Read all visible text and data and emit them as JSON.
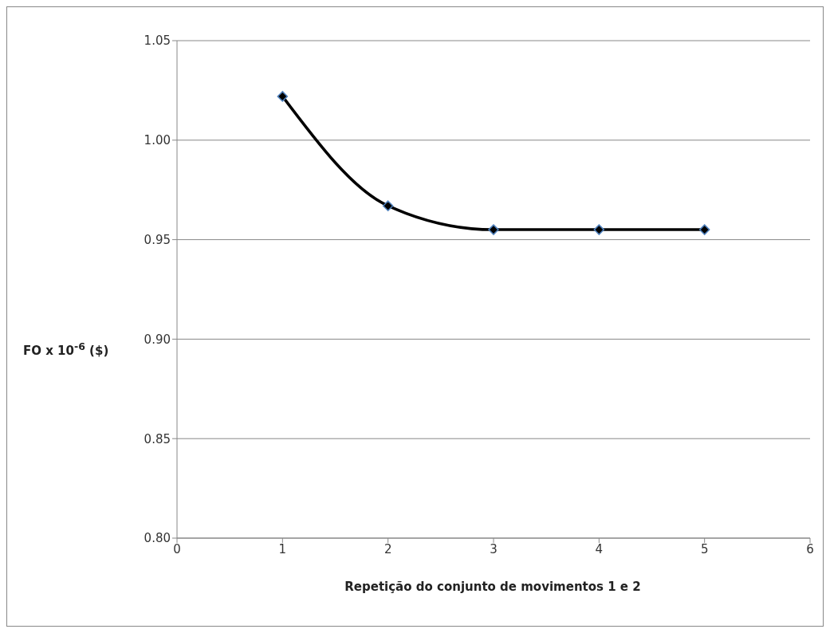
{
  "chart_data": {
    "type": "line",
    "xlabel": "Repetição do conjunto de movimentos 1 e 2",
    "ylabel": "FO x 10$^{-6}$ ($)",
    "x": [
      1,
      2,
      3,
      4,
      5
    ],
    "series": [
      {
        "color": "#000000",
        "values": [
          1.022,
          0.967,
          0.955,
          0.955,
          0.955
        ]
      }
    ],
    "xlim": [
      0,
      6
    ],
    "xticks": [
      0,
      1,
      2,
      3,
      4,
      5,
      6
    ],
    "ylim": [
      0.8,
      1.05
    ],
    "yticks": [
      {
        "value": 0.8,
        "label": "0.80"
      },
      {
        "value": 0.85,
        "label": "0.85"
      },
      {
        "value": 0.9,
        "label": "0.90"
      },
      {
        "value": 0.95,
        "label": "0.95"
      },
      {
        "value": 1.0,
        "label": "1.00"
      },
      {
        "value": 1.05,
        "label": "1.05"
      }
    ],
    "grid": "y",
    "marker": "diamond",
    "line_style": "solid"
  }
}
